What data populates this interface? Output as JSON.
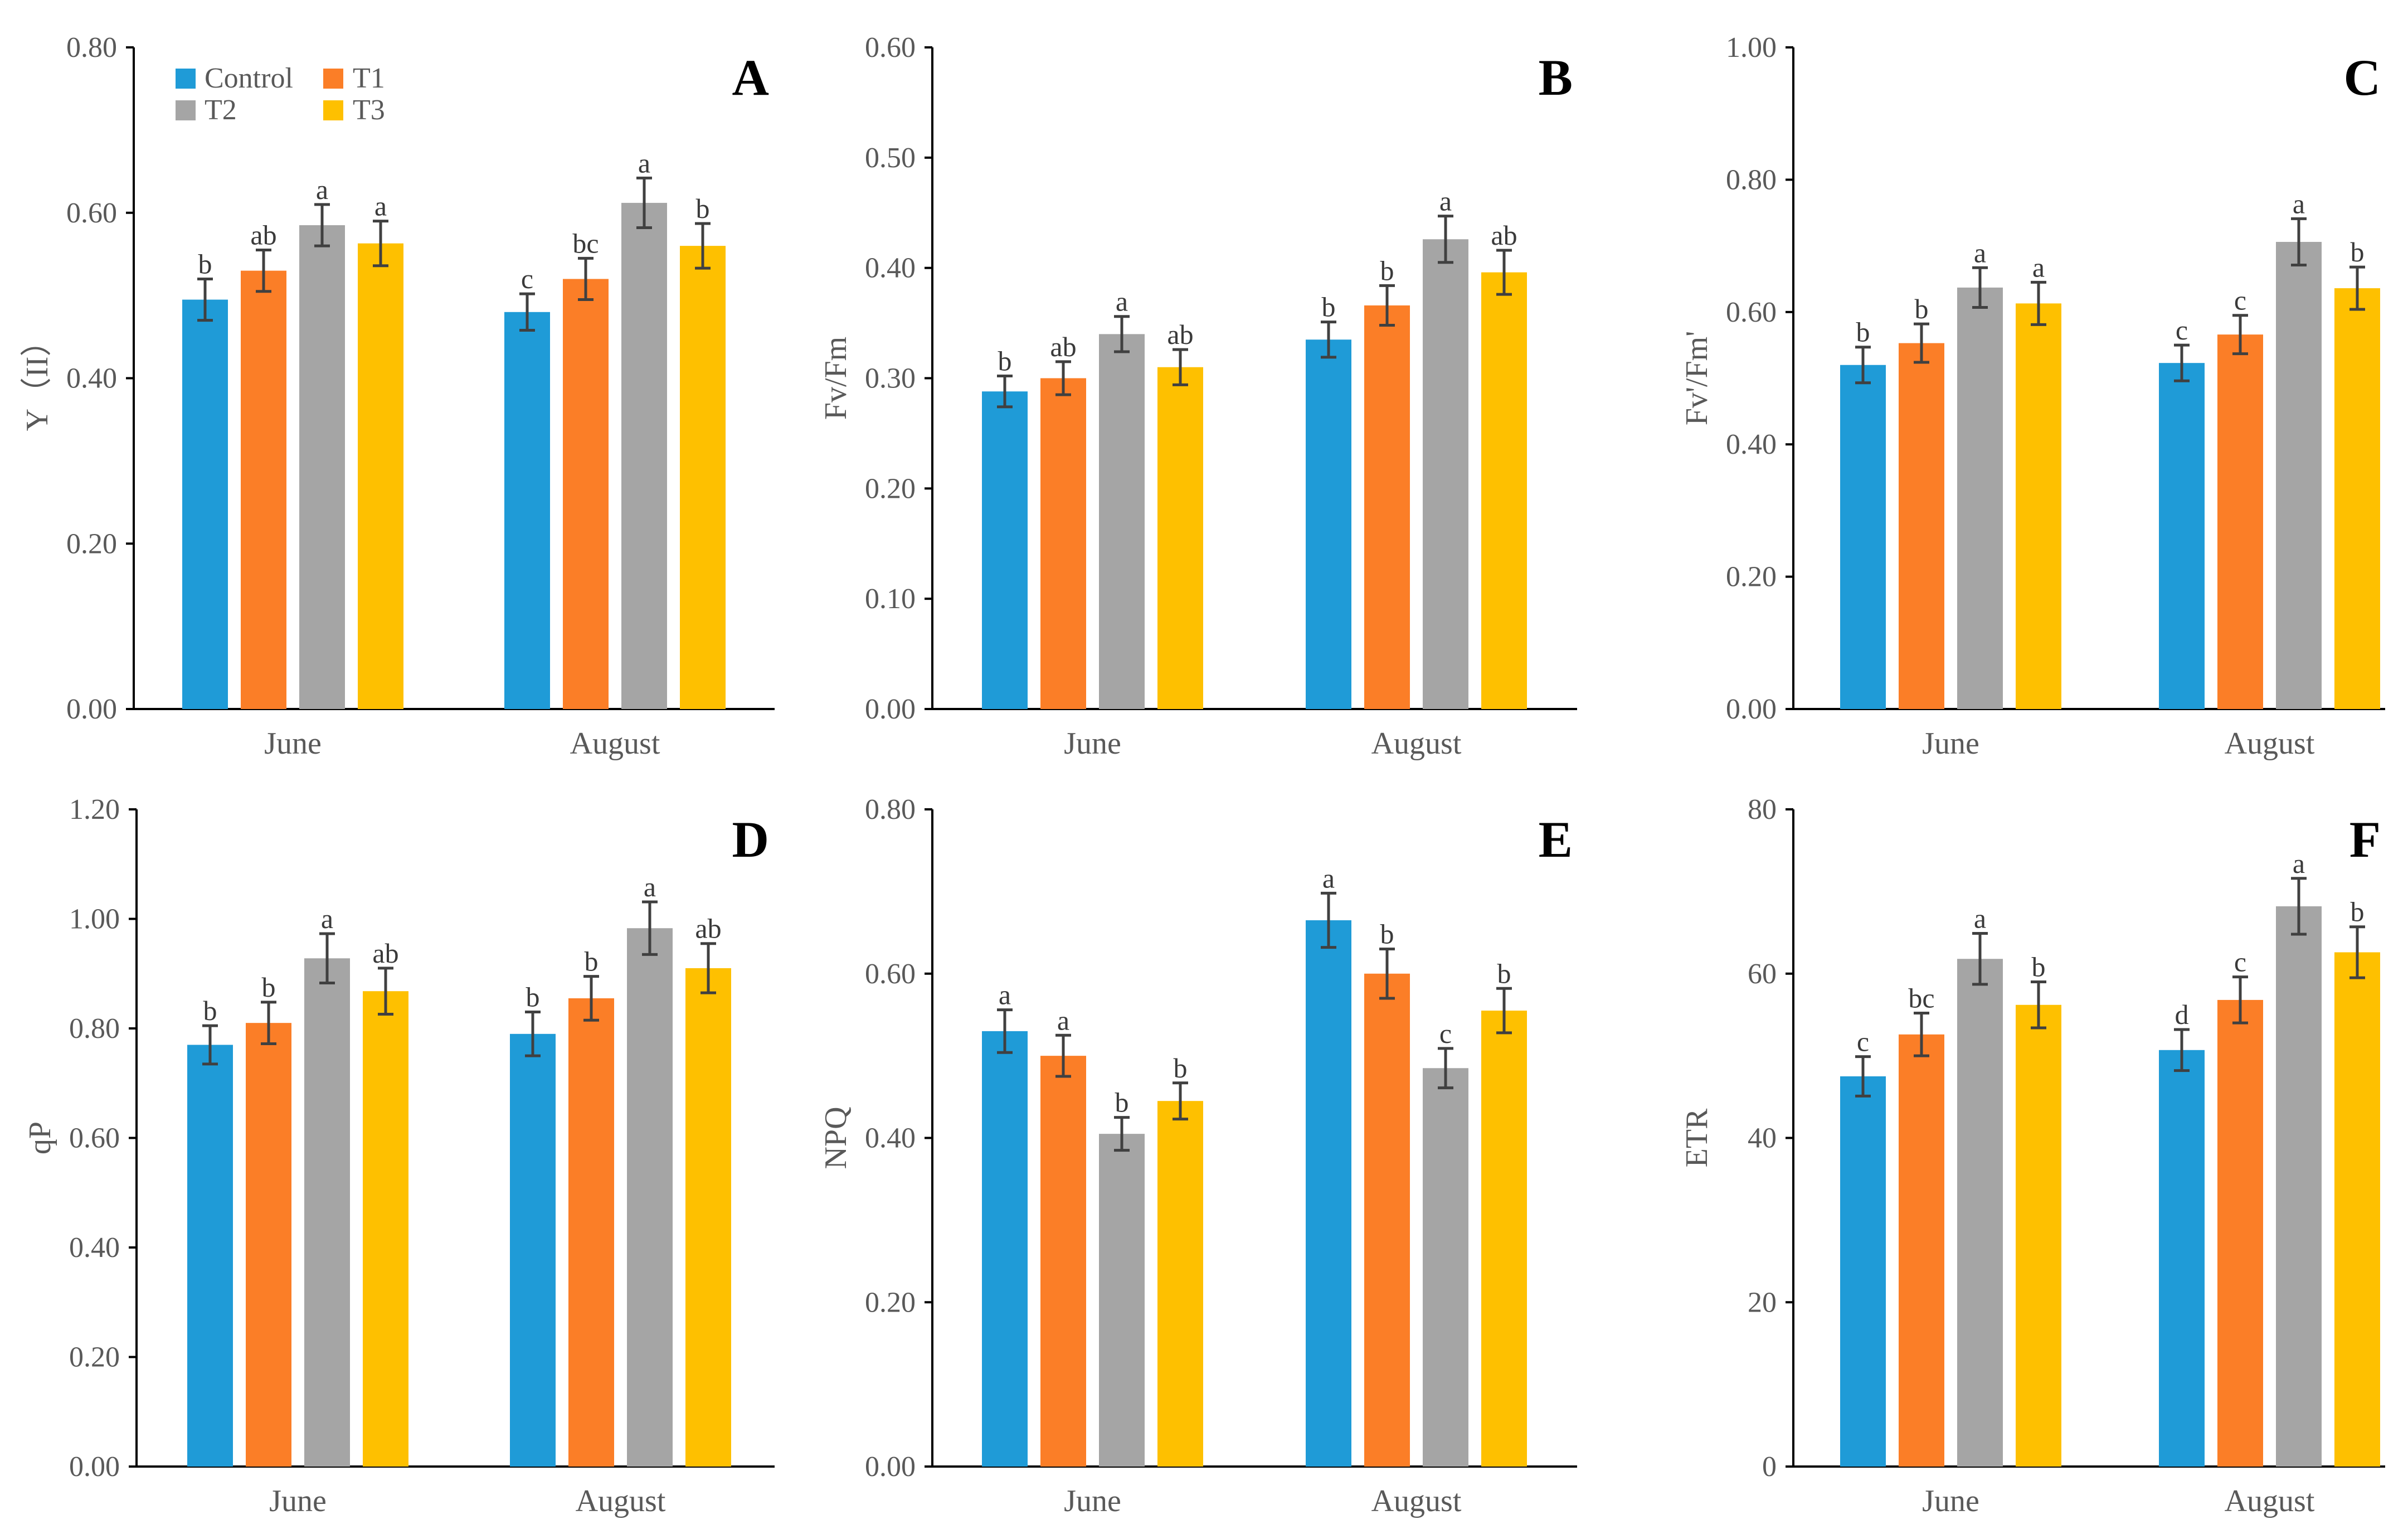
{
  "legend": [
    "Control",
    "T1",
    "T2",
    "T3"
  ],
  "colors": {
    "Control": "#1f9bd7",
    "T1": "#fb7e27",
    "T2": "#a5a5a5",
    "T3": "#fec000"
  },
  "chart_data": [
    {
      "type": "bar",
      "panel": "A",
      "ylabel": "Y（II）",
      "categories": [
        "June",
        "August"
      ],
      "ylim": [
        0,
        0.8
      ],
      "yticks": [
        0,
        0.2,
        0.4,
        0.6,
        0.8
      ],
      "tick_decimals": 2,
      "series": [
        {
          "name": "Control",
          "values": [
            0.495,
            0.48
          ],
          "errors": [
            0.025,
            0.022
          ],
          "letters": [
            "b",
            "c"
          ]
        },
        {
          "name": "T1",
          "values": [
            0.53,
            0.52
          ],
          "errors": [
            0.025,
            0.025
          ],
          "letters": [
            "ab",
            "bc"
          ]
        },
        {
          "name": "T2",
          "values": [
            0.585,
            0.612
          ],
          "errors": [
            0.025,
            0.03
          ],
          "letters": [
            "a",
            "a"
          ]
        },
        {
          "name": "T3",
          "values": [
            0.563,
            0.56
          ],
          "errors": [
            0.027,
            0.027
          ],
          "letters": [
            "a",
            "b"
          ]
        }
      ]
    },
    {
      "type": "bar",
      "panel": "B",
      "ylabel": "Fv/Fm",
      "categories": [
        "June",
        "August"
      ],
      "ylim": [
        0,
        0.6
      ],
      "yticks": [
        0,
        0.1,
        0.2,
        0.3,
        0.4,
        0.5,
        0.6
      ],
      "tick_decimals": 2,
      "series": [
        {
          "name": "Control",
          "values": [
            0.288,
            0.335
          ],
          "errors": [
            0.014,
            0.016
          ],
          "letters": [
            "b",
            "b"
          ]
        },
        {
          "name": "T1",
          "values": [
            0.3,
            0.366
          ],
          "errors": [
            0.015,
            0.018
          ],
          "letters": [
            "ab",
            "b"
          ]
        },
        {
          "name": "T2",
          "values": [
            0.34,
            0.426
          ],
          "errors": [
            0.016,
            0.021
          ],
          "letters": [
            "a",
            "a"
          ]
        },
        {
          "name": "T3",
          "values": [
            0.31,
            0.396
          ],
          "errors": [
            0.016,
            0.02
          ],
          "letters": [
            "ab",
            "ab"
          ]
        }
      ]
    },
    {
      "type": "bar",
      "panel": "C",
      "ylabel": "Fv'/Fm'",
      "categories": [
        "June",
        "August"
      ],
      "ylim": [
        0,
        1.0
      ],
      "yticks": [
        0,
        0.2,
        0.4,
        0.6,
        0.8,
        1.0
      ],
      "tick_decimals": 2,
      "series": [
        {
          "name": "Control",
          "values": [
            0.52,
            0.523
          ],
          "errors": [
            0.027,
            0.027
          ],
          "letters": [
            "b",
            "c"
          ]
        },
        {
          "name": "T1",
          "values": [
            0.553,
            0.566
          ],
          "errors": [
            0.029,
            0.029
          ],
          "letters": [
            "b",
            "c"
          ]
        },
        {
          "name": "T2",
          "values": [
            0.637,
            0.706
          ],
          "errors": [
            0.03,
            0.035
          ],
          "letters": [
            "a",
            "a"
          ]
        },
        {
          "name": "T3",
          "values": [
            0.613,
            0.636
          ],
          "errors": [
            0.032,
            0.032
          ],
          "letters": [
            "a",
            "b"
          ]
        }
      ]
    },
    {
      "type": "bar",
      "panel": "D",
      "ylabel": "qP",
      "categories": [
        "June",
        "August"
      ],
      "ylim": [
        0,
        1.2
      ],
      "yticks": [
        0,
        0.2,
        0.4,
        0.6,
        0.8,
        1.0,
        1.2
      ],
      "tick_decimals": 2,
      "series": [
        {
          "name": "Control",
          "values": [
            0.77,
            0.79
          ],
          "errors": [
            0.035,
            0.04
          ],
          "letters": [
            "b",
            "b"
          ]
        },
        {
          "name": "T1",
          "values": [
            0.81,
            0.855
          ],
          "errors": [
            0.038,
            0.04
          ],
          "letters": [
            "b",
            "b"
          ]
        },
        {
          "name": "T2",
          "values": [
            0.928,
            0.983
          ],
          "errors": [
            0.045,
            0.048
          ],
          "letters": [
            "a",
            "a"
          ]
        },
        {
          "name": "T3",
          "values": [
            0.868,
            0.91
          ],
          "errors": [
            0.042,
            0.045
          ],
          "letters": [
            "ab",
            "ab"
          ]
        }
      ]
    },
    {
      "type": "bar",
      "panel": "E",
      "ylabel": "NPQ",
      "categories": [
        "June",
        "August"
      ],
      "ylim": [
        0,
        0.8
      ],
      "yticks": [
        0,
        0.2,
        0.4,
        0.6,
        0.8
      ],
      "tick_decimals": 2,
      "series": [
        {
          "name": "Control",
          "values": [
            0.53,
            0.665
          ],
          "errors": [
            0.026,
            0.033
          ],
          "letters": [
            "a",
            "a"
          ]
        },
        {
          "name": "T1",
          "values": [
            0.5,
            0.6
          ],
          "errors": [
            0.025,
            0.03
          ],
          "letters": [
            "a",
            "b"
          ]
        },
        {
          "name": "T2",
          "values": [
            0.405,
            0.485
          ],
          "errors": [
            0.02,
            0.024
          ],
          "letters": [
            "b",
            "c"
          ]
        },
        {
          "name": "T3",
          "values": [
            0.445,
            0.555
          ],
          "errors": [
            0.022,
            0.027
          ],
          "letters": [
            "b",
            "b"
          ]
        }
      ]
    },
    {
      "type": "bar",
      "panel": "F",
      "ylabel": "ETR",
      "categories": [
        "June",
        "August"
      ],
      "ylim": [
        0,
        80
      ],
      "yticks": [
        0,
        20,
        40,
        60,
        80
      ],
      "tick_decimals": 0,
      "series": [
        {
          "name": "Control",
          "values": [
            47.5,
            50.7
          ],
          "errors": [
            2.4,
            2.5
          ],
          "letters": [
            "c",
            "d"
          ]
        },
        {
          "name": "T1",
          "values": [
            52.6,
            56.8
          ],
          "errors": [
            2.6,
            2.8
          ],
          "letters": [
            "bc",
            "c"
          ]
        },
        {
          "name": "T2",
          "values": [
            61.8,
            68.2
          ],
          "errors": [
            3.1,
            3.4
          ],
          "letters": [
            "a",
            "a"
          ]
        },
        {
          "name": "T3",
          "values": [
            56.2,
            62.6
          ],
          "errors": [
            2.8,
            3.1
          ],
          "letters": [
            "b",
            "b"
          ]
        }
      ]
    }
  ]
}
